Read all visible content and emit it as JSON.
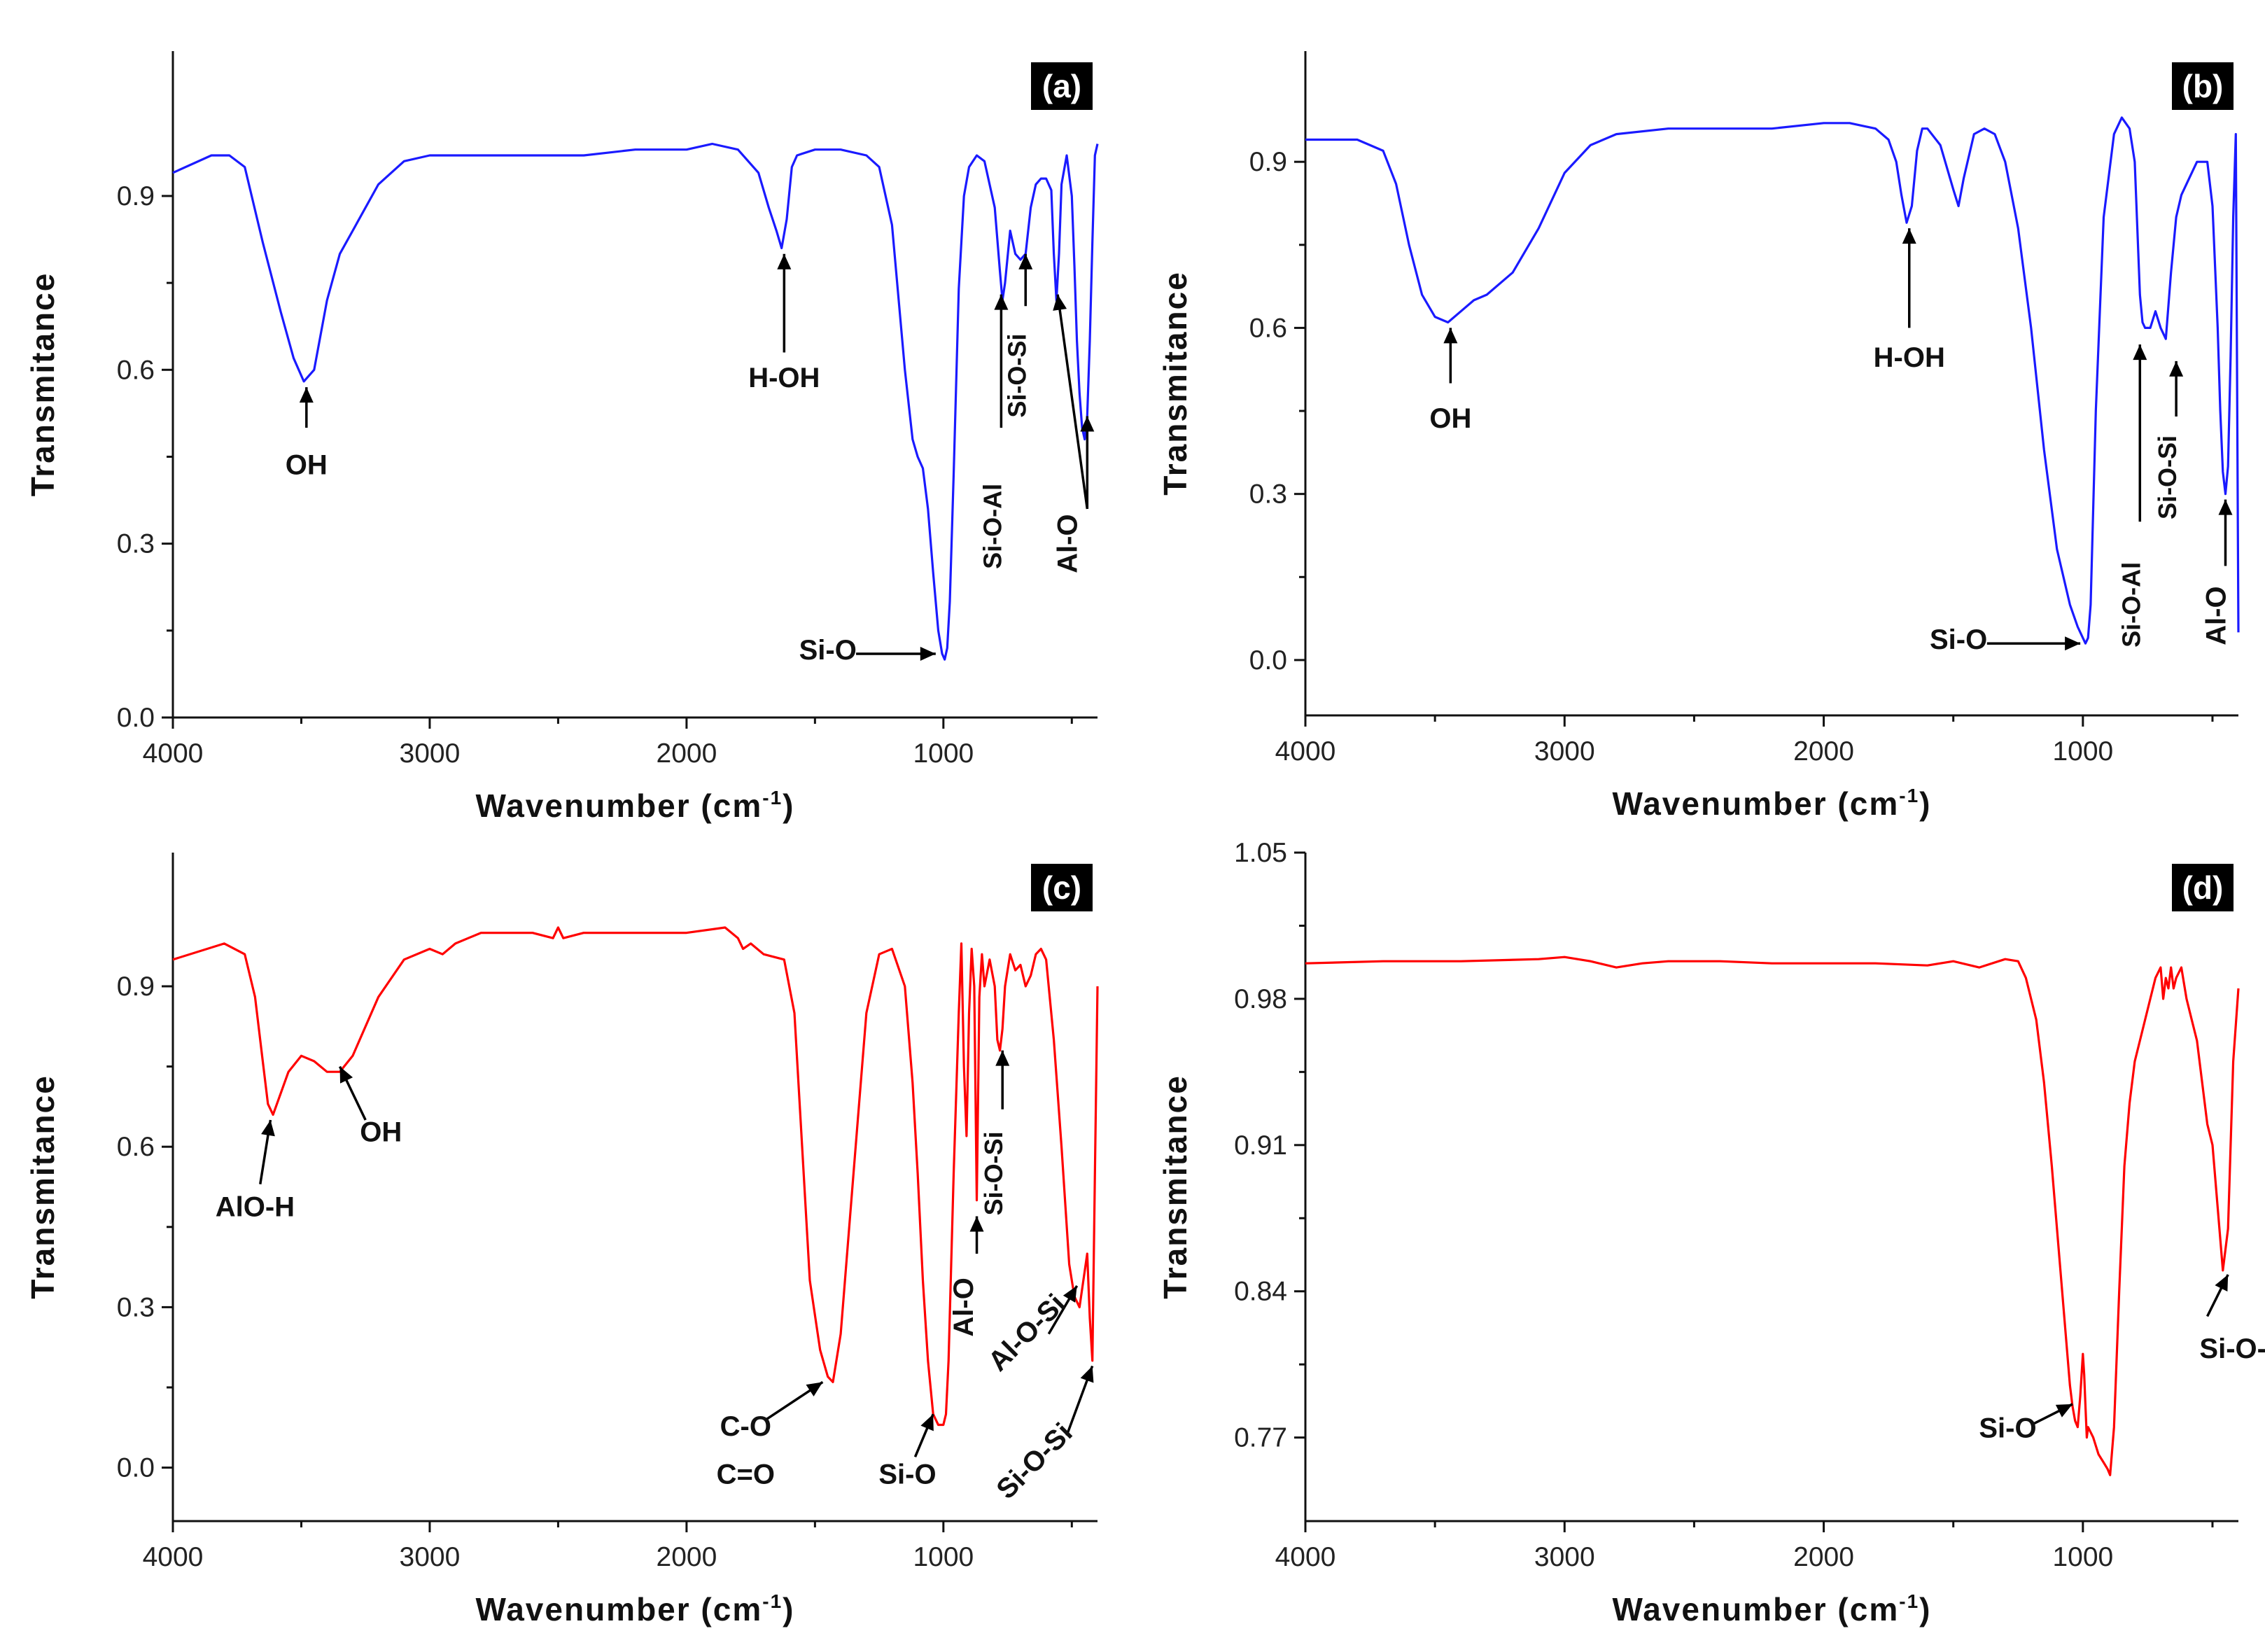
{
  "chart_data": [
    {
      "panel": "(a)",
      "type": "line",
      "color": "#1a1aff",
      "xlabel": "Wavenumber (cm",
      "xlabel_sup": "-1",
      "xlabel_close": ")",
      "ylabel": "Transmitance",
      "xlim": [
        4000,
        400
      ],
      "ylim": [
        0,
        1.15
      ],
      "xticks": [
        4000,
        3000,
        2000,
        1000
      ],
      "xtick_labels": [
        "4000",
        "3000",
        "2000",
        "1000"
      ],
      "yticks": [
        0.0,
        0.3,
        0.6,
        0.9
      ],
      "ytick_labels": [
        "0.0",
        "0.3",
        "0.6",
        "0.9"
      ],
      "x": [
        4000,
        3850,
        3780,
        3720,
        3650,
        3580,
        3530,
        3490,
        3450,
        3400,
        3350,
        3300,
        3200,
        3100,
        3000,
        2800,
        2600,
        2400,
        2200,
        2000,
        1900,
        1800,
        1720,
        1680,
        1650,
        1630,
        1610,
        1590,
        1570,
        1500,
        1400,
        1300,
        1250,
        1200,
        1150,
        1120,
        1100,
        1080,
        1060,
        1040,
        1020,
        1005,
        995,
        985,
        975,
        960,
        940,
        920,
        900,
        870,
        840,
        800,
        780,
        770,
        760,
        740,
        720,
        700,
        680,
        660,
        640,
        620,
        600,
        580,
        570,
        560,
        550,
        540,
        520,
        500,
        490,
        480,
        470,
        460,
        450,
        440,
        430,
        420,
        410,
        400
      ],
      "y": [
        0.94,
        0.97,
        0.97,
        0.95,
        0.82,
        0.7,
        0.62,
        0.58,
        0.6,
        0.72,
        0.8,
        0.84,
        0.92,
        0.96,
        0.97,
        0.97,
        0.97,
        0.97,
        0.98,
        0.98,
        0.99,
        0.98,
        0.94,
        0.88,
        0.84,
        0.81,
        0.86,
        0.95,
        0.97,
        0.98,
        0.98,
        0.97,
        0.95,
        0.85,
        0.6,
        0.48,
        0.45,
        0.43,
        0.36,
        0.25,
        0.15,
        0.11,
        0.1,
        0.12,
        0.2,
        0.42,
        0.74,
        0.9,
        0.95,
        0.97,
        0.96,
        0.88,
        0.77,
        0.72,
        0.75,
        0.84,
        0.8,
        0.79,
        0.8,
        0.88,
        0.92,
        0.93,
        0.93,
        0.91,
        0.8,
        0.72,
        0.8,
        0.92,
        0.97,
        0.9,
        0.78,
        0.65,
        0.56,
        0.5,
        0.48,
        0.52,
        0.65,
        0.82,
        0.97,
        0.99
      ],
      "annotations": [
        {
          "text": "OH",
          "vertical": false,
          "small": false,
          "tx": 3480,
          "ty": 0.42,
          "ax0": 3480,
          "ay0": 0.5,
          "ax1": 3480,
          "ay1": 0.57
        },
        {
          "text": "H-OH",
          "vertical": false,
          "small": false,
          "tx": 1620,
          "ty": 0.57,
          "ax0": 1620,
          "ay0": 0.63,
          "ax1": 1620,
          "ay1": 0.8
        },
        {
          "text": "Si-O",
          "vertical": false,
          "small": false,
          "tx": 1450,
          "ty": 0.1,
          "ax0": 1340,
          "ay0": 0.11,
          "ax1": 1030,
          "ay1": 0.11
        },
        {
          "text": "Si-O-Al",
          "vertical": true,
          "small": true,
          "tx": 775,
          "ty": 0.33,
          "ax0": 775,
          "ay0": 0.5,
          "ax1": 775,
          "ay1": 0.73
        },
        {
          "text": "Si-O-Si",
          "vertical": true,
          "small": true,
          "tx": 680,
          "ty": 0.59,
          "ax0": 680,
          "ay0": 0.71,
          "ax1": 680,
          "ay1": 0.8
        },
        {
          "text": "Al-O",
          "vertical": true,
          "small": false,
          "tx": 480,
          "ty": 0.3,
          "ax0": 440,
          "ay0": 0.36,
          "ax1": 555,
          "ay1": 0.73
        },
        {
          "text": "",
          "vertical": false,
          "small": false,
          "tx": 0,
          "ty": 0,
          "ax0": 440,
          "ay0": 0.36,
          "ax1": 440,
          "ay1": 0.52
        }
      ]
    },
    {
      "panel": "(b)",
      "type": "line",
      "color": "#1a1aff",
      "xlabel": "Wavenumber (cm",
      "xlabel_sup": "-1",
      "xlabel_close": ")",
      "ylabel": "Transmitance",
      "xlim": [
        4000,
        400
      ],
      "ylim": [
        -0.1,
        1.1
      ],
      "xticks": [
        4000,
        3000,
        2000,
        1000
      ],
      "xtick_labels": [
        "4000",
        "3000",
        "2000",
        "1000"
      ],
      "yticks": [
        0.0,
        0.3,
        0.6,
        0.9
      ],
      "ytick_labels": [
        "0.0",
        "0.3",
        "0.6",
        "0.9"
      ],
      "x": [
        4000,
        3800,
        3700,
        3650,
        3600,
        3550,
        3500,
        3450,
        3400,
        3350,
        3300,
        3200,
        3100,
        3000,
        2900,
        2800,
        2600,
        2400,
        2200,
        2000,
        1900,
        1800,
        1750,
        1720,
        1700,
        1680,
        1660,
        1640,
        1620,
        1600,
        1550,
        1500,
        1480,
        1460,
        1420,
        1380,
        1340,
        1300,
        1250,
        1200,
        1150,
        1100,
        1050,
        1020,
        1000,
        990,
        980,
        970,
        950,
        920,
        880,
        850,
        820,
        800,
        790,
        780,
        770,
        760,
        740,
        720,
        700,
        680,
        660,
        640,
        620,
        600,
        560,
        520,
        500,
        480,
        470,
        460,
        450,
        440,
        430,
        420,
        410,
        400
      ],
      "y": [
        0.94,
        0.94,
        0.92,
        0.86,
        0.75,
        0.66,
        0.62,
        0.61,
        0.63,
        0.65,
        0.66,
        0.7,
        0.78,
        0.88,
        0.93,
        0.95,
        0.96,
        0.96,
        0.96,
        0.97,
        0.97,
        0.96,
        0.94,
        0.9,
        0.84,
        0.79,
        0.82,
        0.92,
        0.96,
        0.96,
        0.93,
        0.85,
        0.82,
        0.87,
        0.95,
        0.96,
        0.95,
        0.9,
        0.78,
        0.6,
        0.38,
        0.2,
        0.1,
        0.06,
        0.04,
        0.03,
        0.04,
        0.1,
        0.45,
        0.8,
        0.95,
        0.98,
        0.96,
        0.9,
        0.78,
        0.66,
        0.61,
        0.6,
        0.6,
        0.63,
        0.6,
        0.58,
        0.7,
        0.8,
        0.84,
        0.86,
        0.9,
        0.9,
        0.82,
        0.6,
        0.45,
        0.34,
        0.3,
        0.35,
        0.55,
        0.8,
        0.95,
        0.05
      ],
      "annotations": [
        {
          "text": "OH",
          "vertical": false,
          "small": false,
          "tx": 3440,
          "ty": 0.42,
          "ax0": 3440,
          "ay0": 0.5,
          "ax1": 3440,
          "ay1": 0.6
        },
        {
          "text": "H-OH",
          "vertical": false,
          "small": false,
          "tx": 1670,
          "ty": 0.53,
          "ax0": 1670,
          "ay0": 0.6,
          "ax1": 1670,
          "ay1": 0.78
        },
        {
          "text": "Si-O",
          "vertical": false,
          "small": false,
          "tx": 1480,
          "ty": 0.02,
          "ax0": 1370,
          "ay0": 0.03,
          "ax1": 1010,
          "ay1": 0.03
        },
        {
          "text": "Si-O-Al",
          "vertical": true,
          "small": true,
          "tx": 780,
          "ty": 0.1,
          "ax0": 780,
          "ay0": 0.25,
          "ax1": 780,
          "ay1": 0.57
        },
        {
          "text": "Si-O-Si",
          "vertical": true,
          "small": true,
          "tx": 640,
          "ty": 0.33,
          "ax0": 640,
          "ay0": 0.44,
          "ax1": 640,
          "ay1": 0.54
        },
        {
          "text": "Al-O",
          "vertical": true,
          "small": false,
          "tx": 450,
          "ty": 0.08,
          "ax0": 450,
          "ay0": 0.17,
          "ax1": 450,
          "ay1": 0.29
        }
      ]
    },
    {
      "panel": "(c)",
      "type": "line",
      "color": "#ff0000",
      "xlabel": "Wavenumber (cm",
      "xlabel_sup": "-1",
      "xlabel_close": ")",
      "ylabel": "Transmitance",
      "xlim": [
        4000,
        400
      ],
      "ylim": [
        -0.1,
        1.15
      ],
      "xticks": [
        4000,
        3000,
        2000,
        1000
      ],
      "xtick_labels": [
        "4000",
        "3000",
        "2000",
        "1000"
      ],
      "yticks": [
        0.0,
        0.3,
        0.6,
        0.9
      ],
      "ytick_labels": [
        "0.0",
        "0.3",
        "0.6",
        "0.9"
      ],
      "x": [
        4000,
        3800,
        3720,
        3680,
        3650,
        3630,
        3610,
        3580,
        3550,
        3500,
        3450,
        3400,
        3350,
        3300,
        3200,
        3100,
        3000,
        2950,
        2900,
        2850,
        2800,
        2600,
        2520,
        2500,
        2480,
        2400,
        2200,
        2000,
        1850,
        1800,
        1780,
        1750,
        1700,
        1620,
        1580,
        1550,
        1520,
        1480,
        1450,
        1430,
        1400,
        1350,
        1300,
        1250,
        1200,
        1150,
        1120,
        1100,
        1080,
        1060,
        1040,
        1020,
        1000,
        990,
        980,
        960,
        940,
        930,
        920,
        910,
        900,
        890,
        880,
        870,
        860,
        850,
        840,
        820,
        800,
        790,
        780,
        770,
        760,
        740,
        720,
        700,
        680,
        660,
        640,
        620,
        600,
        570,
        540,
        510,
        490,
        470,
        455,
        440,
        430,
        420,
        410,
        400
      ],
      "y": [
        0.95,
        0.98,
        0.96,
        0.88,
        0.76,
        0.68,
        0.66,
        0.7,
        0.74,
        0.77,
        0.76,
        0.74,
        0.74,
        0.77,
        0.88,
        0.95,
        0.97,
        0.96,
        0.98,
        0.99,
        1.0,
        1.0,
        0.99,
        1.01,
        0.99,
        1.0,
        1.0,
        1.0,
        1.01,
        0.99,
        0.97,
        0.98,
        0.96,
        0.95,
        0.85,
        0.6,
        0.35,
        0.22,
        0.17,
        0.16,
        0.25,
        0.55,
        0.85,
        0.96,
        0.97,
        0.9,
        0.72,
        0.55,
        0.35,
        0.2,
        0.1,
        0.08,
        0.08,
        0.1,
        0.2,
        0.55,
        0.85,
        0.98,
        0.75,
        0.62,
        0.85,
        0.97,
        0.9,
        0.5,
        0.88,
        0.96,
        0.9,
        0.95,
        0.9,
        0.8,
        0.78,
        0.82,
        0.9,
        0.96,
        0.93,
        0.94,
        0.9,
        0.92,
        0.96,
        0.97,
        0.95,
        0.8,
        0.6,
        0.38,
        0.32,
        0.3,
        0.35,
        0.4,
        0.28,
        0.2,
        0.55,
        0.9
      ],
      "annotations": [
        {
          "text": "AlO-H",
          "vertical": false,
          "small": false,
          "tx": 3680,
          "ty": 0.47,
          "ax0": 3660,
          "ay0": 0.53,
          "ax1": 3620,
          "ay1": 0.65
        },
        {
          "text": "OH",
          "vertical": false,
          "small": false,
          "tx": 3190,
          "ty": 0.61,
          "ax0": 3250,
          "ay0": 0.65,
          "ax1": 3350,
          "ay1": 0.75
        },
        {
          "text": "C-O",
          "vertical": false,
          "small": false,
          "tx": 1770,
          "ty": 0.06,
          "ax0": 1690,
          "ay0": 0.09,
          "ax1": 1470,
          "ay1": 0.16
        },
        {
          "text": "C=O",
          "vertical": false,
          "small": false,
          "tx": 1770,
          "ty": -0.03,
          "ax0": 0,
          "ay0": 0,
          "ax1": 0,
          "ay1": 0
        },
        {
          "text": "Si-O",
          "vertical": false,
          "small": false,
          "tx": 1140,
          "ty": -0.03,
          "ax0": 1110,
          "ay0": 0.02,
          "ax1": 1040,
          "ay1": 0.1
        },
        {
          "text": "Al-O",
          "vertical": true,
          "small": false,
          "tx": 885,
          "ty": 0.3,
          "ax0": 870,
          "ay0": 0.4,
          "ax1": 870,
          "ay1": 0.47
        },
        {
          "text": "Si-O-Si",
          "vertical": true,
          "small": true,
          "tx": 770,
          "ty": 0.55,
          "ax0": 770,
          "ay0": 0.67,
          "ax1": 770,
          "ay1": 0.78
        },
        {
          "text": "Al-O-Si",
          "vertical": false,
          "small": false,
          "rot": -45,
          "tx": 650,
          "ty": 0.24,
          "ax0": 590,
          "ay0": 0.25,
          "ax1": 480,
          "ay1": 0.34
        },
        {
          "text": "Si-O-Si",
          "vertical": false,
          "small": false,
          "rot": -45,
          "tx": 620,
          "ty": 0.0,
          "ax0": 520,
          "ay0": 0.06,
          "ax1": 420,
          "ay1": 0.19
        }
      ]
    },
    {
      "panel": "(d)",
      "type": "line",
      "color": "#ff0000",
      "xlabel": "Wavenumber (cm",
      "xlabel_sup": "-1",
      "xlabel_close": ")",
      "ylabel": "Transmitance",
      "xlim": [
        4000,
        400
      ],
      "ylim": [
        0.73,
        1.05
      ],
      "xticks": [
        4000,
        3000,
        2000,
        1000
      ],
      "xtick_labels": [
        "4000",
        "3000",
        "2000",
        "1000"
      ],
      "yticks": [
        0.77,
        0.84,
        0.91,
        0.98,
        1.05
      ],
      "ytick_labels": [
        "0.77",
        "0.84",
        "0.91",
        "0.98",
        "1.05"
      ],
      "x": [
        4000,
        3700,
        3400,
        3100,
        3000,
        2900,
        2800,
        2700,
        2600,
        2400,
        2200,
        2000,
        1800,
        1600,
        1500,
        1400,
        1300,
        1250,
        1220,
        1180,
        1150,
        1120,
        1100,
        1080,
        1060,
        1050,
        1040,
        1030,
        1020,
        1010,
        1000,
        995,
        990,
        985,
        980,
        960,
        940,
        920,
        905,
        895,
        880,
        860,
        840,
        820,
        800,
        780,
        760,
        740,
        720,
        700,
        690,
        680,
        670,
        660,
        650,
        640,
        620,
        600,
        580,
        560,
        540,
        520,
        500,
        480,
        460,
        440,
        420,
        400
      ],
      "y": [
        0.997,
        0.998,
        0.998,
        0.999,
        1.0,
        0.998,
        0.995,
        0.997,
        0.998,
        0.998,
        0.997,
        0.997,
        0.997,
        0.996,
        0.998,
        0.995,
        0.999,
        0.998,
        0.99,
        0.97,
        0.94,
        0.9,
        0.87,
        0.84,
        0.81,
        0.795,
        0.785,
        0.778,
        0.775,
        0.79,
        0.81,
        0.8,
        0.785,
        0.77,
        0.775,
        0.77,
        0.762,
        0.758,
        0.755,
        0.752,
        0.775,
        0.84,
        0.9,
        0.93,
        0.95,
        0.96,
        0.97,
        0.98,
        0.99,
        0.995,
        0.98,
        0.99,
        0.985,
        0.995,
        0.985,
        0.99,
        0.995,
        0.98,
        0.97,
        0.96,
        0.94,
        0.92,
        0.91,
        0.88,
        0.85,
        0.87,
        0.95,
        0.985
      ],
      "annotations": [
        {
          "text": "Si-O",
          "vertical": false,
          "small": false,
          "tx": 1290,
          "ty": 0.77,
          "ax0": 1200,
          "ay0": 0.776,
          "ax1": 1040,
          "ay1": 0.786
        },
        {
          "text": "Si-O-Si",
          "vertical": false,
          "small": false,
          "tx": 370,
          "ty": 0.808,
          "ax0": 520,
          "ay0": 0.828,
          "ax1": 440,
          "ay1": 0.848
        }
      ]
    }
  ]
}
